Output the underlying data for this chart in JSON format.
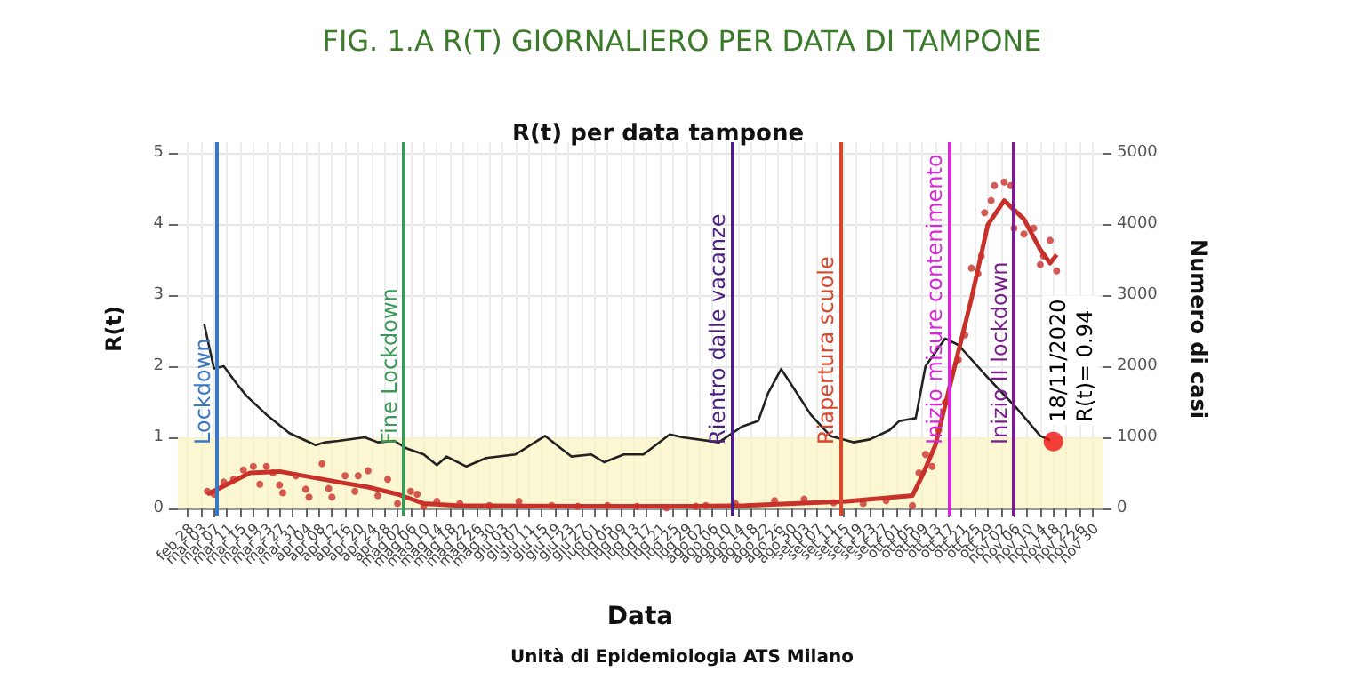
{
  "chart_data": {
    "type": "line",
    "title": "FIG. 1.A R(T) GIORNALIERO PER DATA DI TAMPONE",
    "subtitle": "R(t) per data tampone",
    "xlabel": "Data",
    "ylabel": "R(t)",
    "y2label": "Numero di casi",
    "annotations": [
      "Unità di Epidemiologia ATS Milano",
      {
        "text": "18/11/2020\nR(t)= 0.94",
        "x": "2020-11-18",
        "y": 0.94
      }
    ],
    "series": [
      {
        "color": "#222222",
        "x": [
          "2020-03-04",
          "2020-03-07",
          "2020-03-10",
          "2020-03-14",
          "2020-03-17",
          "2020-03-23",
          "2020-03-30",
          "2020-04-07",
          "2020-04-10",
          "2020-04-14",
          "2020-04-22",
          "2020-04-26",
          "2020-05-01",
          "2020-05-05",
          "2020-05-10",
          "2020-05-14",
          "2020-05-17",
          "2020-05-23",
          "2020-05-29",
          "2020-06-07",
          "2020-06-16",
          "2020-06-24",
          "2020-06-30",
          "2020-07-04",
          "2020-07-10",
          "2020-07-16",
          "2020-07-24",
          "2020-07-28",
          "2020-08-08",
          "2020-08-15",
          "2020-08-20",
          "2020-08-23",
          "2020-08-27",
          "2020-08-30",
          "2020-09-05",
          "2020-09-11",
          "2020-09-18",
          "2020-09-23",
          "2020-09-29",
          "2020-10-02",
          "2020-10-07",
          "2020-10-10",
          "2020-10-16",
          "2020-10-20",
          "2020-10-29",
          "2020-11-07",
          "2020-11-14",
          "2020-11-17"
        ],
        "values": [
          2.6,
          1.97,
          2.0,
          1.75,
          1.58,
          1.32,
          1.06,
          0.89,
          0.93,
          0.95,
          1.0,
          0.93,
          0.95,
          0.84,
          0.76,
          0.61,
          0.73,
          0.59,
          0.71,
          0.76,
          1.02,
          0.73,
          0.76,
          0.65,
          0.76,
          0.76,
          1.04,
          1.0,
          0.93,
          1.15,
          1.23,
          1.62,
          1.96,
          1.75,
          1.32,
          1.02,
          0.93,
          0.97,
          1.1,
          1.23,
          1.27,
          2.0,
          2.39,
          2.3,
          1.84,
          1.4,
          1.02,
          0.96
        ]
      },
      {
        "type": "scatter",
        "axis": "y2",
        "color": "#c8312a",
        "x": [
          "2020-03-05",
          "2020-03-07",
          "2020-03-10",
          "2020-03-13",
          "2020-03-16",
          "2020-03-19",
          "2020-03-21",
          "2020-03-23",
          "2020-03-25",
          "2020-03-27",
          "2020-03-28",
          "2020-04-01",
          "2020-04-04",
          "2020-04-05",
          "2020-04-09",
          "2020-04-11",
          "2020-04-12",
          "2020-04-16",
          "2020-04-19",
          "2020-04-20",
          "2020-04-23",
          "2020-04-26",
          "2020-04-29",
          "2020-05-02",
          "2020-05-06",
          "2020-05-08",
          "2020-05-10",
          "2020-05-14",
          "2020-05-21",
          "2020-05-30",
          "2020-06-08",
          "2020-06-18",
          "2020-06-26",
          "2020-07-05",
          "2020-07-14",
          "2020-07-23",
          "2020-08-01",
          "2020-08-04",
          "2020-08-13",
          "2020-08-25",
          "2020-09-03",
          "2020-09-12",
          "2020-09-21",
          "2020-09-28",
          "2020-10-06",
          "2020-10-08",
          "2020-10-10",
          "2020-10-12",
          "2020-10-14",
          "2020-10-16",
          "2020-10-20",
          "2020-10-22",
          "2020-10-24",
          "2020-10-26",
          "2020-10-27",
          "2020-10-28",
          "2020-10-30",
          "2020-10-31",
          "2020-11-03",
          "2020-11-05",
          "2020-11-06",
          "2020-11-09",
          "2020-11-12",
          "2020-11-14",
          "2020-11-15",
          "2020-11-17",
          "2020-11-19"
        ],
        "values": [
          240,
          200,
          370,
          410,
          540,
          590,
          340,
          590,
          500,
          330,
          220,
          460,
          270,
          160,
          630,
          280,
          160,
          460,
          240,
          460,
          530,
          180,
          410,
          70,
          240,
          200,
          30,
          100,
          70,
          40,
          100,
          40,
          30,
          40,
          30,
          10,
          30,
          40,
          70,
          110,
          130,
          80,
          70,
          110,
          40,
          500,
          760,
          590,
          1100,
          1490,
          2090,
          2440,
          3380,
          3300,
          3550,
          4160,
          4330,
          4540,
          4590,
          4540,
          3940,
          3860,
          3940,
          3430,
          3550,
          3770,
          3340
        ]
      },
      {
        "type": "line",
        "axis": "y2",
        "color": "#c8312a",
        "x": [
          "2020-03-05",
          "2020-03-18",
          "2020-03-27",
          "2020-04-14",
          "2020-04-23",
          "2020-05-02",
          "2020-05-10",
          "2020-05-20",
          "2020-06-24",
          "2020-07-31",
          "2020-08-16",
          "2020-09-16",
          "2020-10-06",
          "2020-10-09",
          "2020-10-13",
          "2020-10-18",
          "2020-10-24",
          "2020-10-29",
          "2020-11-03",
          "2020-11-09",
          "2020-11-14",
          "2020-11-17",
          "2020-11-19"
        ],
        "values": [
          200,
          500,
          520,
          370,
          300,
          200,
          70,
          40,
          30,
          30,
          40,
          100,
          180,
          460,
          890,
          1830,
          2950,
          3990,
          4330,
          4070,
          3640,
          3450,
          3570
        ]
      }
    ],
    "xlim": [
      "2020-02-25",
      "2020-12-03"
    ],
    "xticks": [
      {
        "value": "2020-02-28",
        "label": "feb 28"
      },
      {
        "value": "2020-03-03",
        "label": "mar 03"
      },
      {
        "value": "2020-03-07",
        "label": "mar 07"
      },
      {
        "value": "2020-03-11",
        "label": "mar 11"
      },
      {
        "value": "2020-03-15",
        "label": "mar 15"
      },
      {
        "value": "2020-03-19",
        "label": "mar 19"
      },
      {
        "value": "2020-03-23",
        "label": "mar 23"
      },
      {
        "value": "2020-03-27",
        "label": "mar 27"
      },
      {
        "value": "2020-03-31",
        "label": "mar 31"
      },
      {
        "value": "2020-04-04",
        "label": "apr 04"
      },
      {
        "value": "2020-04-08",
        "label": "apr 08"
      },
      {
        "value": "2020-04-12",
        "label": "apr 12"
      },
      {
        "value": "2020-04-16",
        "label": "apr 16"
      },
      {
        "value": "2020-04-20",
        "label": "apr 20"
      },
      {
        "value": "2020-04-24",
        "label": "apr 24"
      },
      {
        "value": "2020-04-28",
        "label": "apr 28"
      },
      {
        "value": "2020-05-02",
        "label": "mag 02"
      },
      {
        "value": "2020-05-06",
        "label": "mag 06"
      },
      {
        "value": "2020-05-10",
        "label": "mag 10"
      },
      {
        "value": "2020-05-14",
        "label": "mag 14"
      },
      {
        "value": "2020-05-18",
        "label": "mag 18"
      },
      {
        "value": "2020-05-22",
        "label": "mag 22"
      },
      {
        "value": "2020-05-26",
        "label": "mag 26"
      },
      {
        "value": "2020-05-30",
        "label": "mag 30"
      },
      {
        "value": "2020-06-03",
        "label": "giu 03"
      },
      {
        "value": "2020-06-07",
        "label": "giu 07"
      },
      {
        "value": "2020-06-11",
        "label": "giu 11"
      },
      {
        "value": "2020-06-15",
        "label": "giu 15"
      },
      {
        "value": "2020-06-19",
        "label": "giu 19"
      },
      {
        "value": "2020-06-23",
        "label": "giu 23"
      },
      {
        "value": "2020-06-27",
        "label": "giu 27"
      },
      {
        "value": "2020-07-01",
        "label": "lug 01"
      },
      {
        "value": "2020-07-05",
        "label": "lug 05"
      },
      {
        "value": "2020-07-09",
        "label": "lug 09"
      },
      {
        "value": "2020-07-13",
        "label": "lug 13"
      },
      {
        "value": "2020-07-17",
        "label": "lug 17"
      },
      {
        "value": "2020-07-21",
        "label": "lug 21"
      },
      {
        "value": "2020-07-25",
        "label": "lug 25"
      },
      {
        "value": "2020-07-29",
        "label": "lug 29"
      },
      {
        "value": "2020-08-02",
        "label": "ago 02"
      },
      {
        "value": "2020-08-06",
        "label": "ago 06"
      },
      {
        "value": "2020-08-10",
        "label": "ago 10"
      },
      {
        "value": "2020-08-14",
        "label": "ago 14"
      },
      {
        "value": "2020-08-18",
        "label": "ago 18"
      },
      {
        "value": "2020-08-22",
        "label": "ago 22"
      },
      {
        "value": "2020-08-26",
        "label": "ago 26"
      },
      {
        "value": "2020-08-30",
        "label": "ago 30"
      },
      {
        "value": "2020-09-03",
        "label": "set 03"
      },
      {
        "value": "2020-09-07",
        "label": "set 07"
      },
      {
        "value": "2020-09-11",
        "label": "set 11"
      },
      {
        "value": "2020-09-15",
        "label": "set 15"
      },
      {
        "value": "2020-09-19",
        "label": "set 19"
      },
      {
        "value": "2020-09-23",
        "label": "set 23"
      },
      {
        "value": "2020-09-27",
        "label": "set 27"
      },
      {
        "value": "2020-10-01",
        "label": "ott 01"
      },
      {
        "value": "2020-10-05",
        "label": "ott 05"
      },
      {
        "value": "2020-10-09",
        "label": "ott 09"
      },
      {
        "value": "2020-10-13",
        "label": "ott 13"
      },
      {
        "value": "2020-10-17",
        "label": "ott 17"
      },
      {
        "value": "2020-10-21",
        "label": "ott 21"
      },
      {
        "value": "2020-10-25",
        "label": "ott 25"
      },
      {
        "value": "2020-10-29",
        "label": "ott 29"
      },
      {
        "value": "2020-11-02",
        "label": "nov 02"
      },
      {
        "value": "2020-11-06",
        "label": "nov 06"
      },
      {
        "value": "2020-11-10",
        "label": "nov 10"
      },
      {
        "value": "2020-11-14",
        "label": "nov 14"
      },
      {
        "value": "2020-11-18",
        "label": "nov 18"
      },
      {
        "value": "2020-11-22",
        "label": "nov 22"
      },
      {
        "value": "2020-11-26",
        "label": "nov 26"
      },
      {
        "value": "2020-11-30",
        "label": "nov 30"
      }
    ],
    "ylim": [
      -0.1,
      5.15
    ],
    "yticks": [
      0,
      1,
      2,
      3,
      4,
      5
    ],
    "y2lim": [
      -100,
      5150
    ],
    "y2ticks": [
      0,
      1000,
      2000,
      3000,
      4000,
      5000
    ],
    "ref_lines": [
      {
        "axis": "x",
        "value": "2020-03-08",
        "label": "Lockdown",
        "color": "#3b78c4"
      },
      {
        "axis": "x",
        "value": "2020-05-04",
        "label": "Fine Lockdown",
        "color": "#3a9a5a"
      },
      {
        "axis": "x",
        "value": "2020-08-12",
        "label": "Rientro dalle vacanze",
        "color": "#4b1f80"
      },
      {
        "axis": "x",
        "value": "2020-09-14",
        "label": "Riapertura scuole",
        "color": "#d9472b"
      },
      {
        "axis": "x",
        "value": "2020-10-17",
        "label": "Inizio misure contenimento",
        "color": "#d42ad4"
      },
      {
        "axis": "x",
        "value": "2020-11-06",
        "label": "Inizio II lockdown",
        "color": "#7a1f8a"
      }
    ],
    "bands": [
      {
        "axis": "y",
        "from": 0,
        "to": 1,
        "color": "#fbf5c8"
      }
    ],
    "grid": true
  }
}
